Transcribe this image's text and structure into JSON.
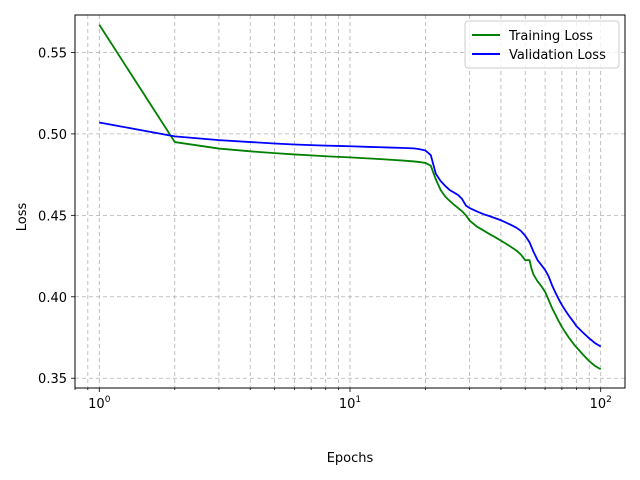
{
  "chart_data": {
    "type": "line",
    "xlabel": "Epochs",
    "ylabel": "Loss",
    "xscale": "log",
    "xlim": [
      0.8,
      125
    ],
    "ylim": [
      0.344,
      0.573
    ],
    "grid": "both, dashed (major and minor x)",
    "legend_position": "top-right",
    "x_tick_labels": [
      {
        "base": "10",
        "exp": "0",
        "value": 1
      },
      {
        "base": "10",
        "exp": "1",
        "value": 10
      },
      {
        "base": "10",
        "exp": "2",
        "value": 100
      }
    ],
    "y_ticks": [
      0.35,
      0.4,
      0.45,
      0.5,
      0.55
    ],
    "y_tick_labels": [
      "0.35",
      "0.40",
      "0.45",
      "0.50",
      "0.55"
    ],
    "series": [
      {
        "name": "Training Loss",
        "color": "#008000",
        "x": [
          1,
          2,
          3,
          4,
          5,
          6,
          7,
          8,
          9,
          10,
          11,
          12,
          13,
          14,
          15,
          16,
          17,
          18,
          19,
          20,
          21,
          22,
          23,
          24,
          25,
          26,
          27,
          28,
          29,
          30,
          32,
          34,
          36,
          38,
          40,
          42,
          44,
          46,
          48,
          50,
          52,
          53,
          54,
          56,
          58,
          60,
          62,
          64,
          66,
          68,
          70,
          72,
          75,
          78,
          80,
          85,
          90,
          95,
          100
        ],
        "y": [
          0.567,
          0.495,
          0.491,
          0.4893,
          0.4882,
          0.4874,
          0.4868,
          0.4863,
          0.4859,
          0.4856,
          0.4852,
          0.4849,
          0.4846,
          0.4843,
          0.484,
          0.4837,
          0.4834,
          0.4831,
          0.4827,
          0.4822,
          0.4805,
          0.472,
          0.4655,
          0.4615,
          0.4588,
          0.4565,
          0.4545,
          0.4525,
          0.45,
          0.4468,
          0.4432,
          0.4408,
          0.4385,
          0.4365,
          0.4345,
          0.4325,
          0.4305,
          0.4285,
          0.426,
          0.4225,
          0.4225,
          0.417,
          0.4135,
          0.4095,
          0.4065,
          0.403,
          0.398,
          0.393,
          0.389,
          0.385,
          0.3815,
          0.3785,
          0.3745,
          0.371,
          0.369,
          0.3645,
          0.3605,
          0.3575,
          0.3555
        ]
      },
      {
        "name": "Validation Loss",
        "color": "#0000ff",
        "x": [
          1,
          2,
          3,
          4,
          5,
          6,
          7,
          8,
          9,
          10,
          12,
          14,
          16,
          18,
          19,
          20,
          21,
          22,
          23,
          24,
          25,
          26,
          27,
          28,
          29,
          30,
          32,
          34,
          36,
          38,
          40,
          42,
          44,
          46,
          48,
          50,
          52,
          54,
          56,
          58,
          60,
          62,
          64,
          66,
          68,
          70,
          72,
          75,
          78,
          80,
          85,
          90,
          95,
          100
        ],
        "y": [
          0.507,
          0.4985,
          0.4962,
          0.495,
          0.4941,
          0.4935,
          0.4931,
          0.4928,
          0.4926,
          0.4924,
          0.492,
          0.4917,
          0.4914,
          0.4911,
          0.4906,
          0.4898,
          0.487,
          0.4755,
          0.471,
          0.468,
          0.4655,
          0.464,
          0.4625,
          0.46,
          0.456,
          0.4545,
          0.4525,
          0.4508,
          0.4495,
          0.4482,
          0.447,
          0.4455,
          0.444,
          0.4425,
          0.4405,
          0.4375,
          0.4335,
          0.4275,
          0.4225,
          0.4195,
          0.4165,
          0.4125,
          0.407,
          0.4025,
          0.3985,
          0.395,
          0.392,
          0.388,
          0.3845,
          0.382,
          0.378,
          0.3745,
          0.3715,
          0.3695
        ]
      }
    ]
  }
}
